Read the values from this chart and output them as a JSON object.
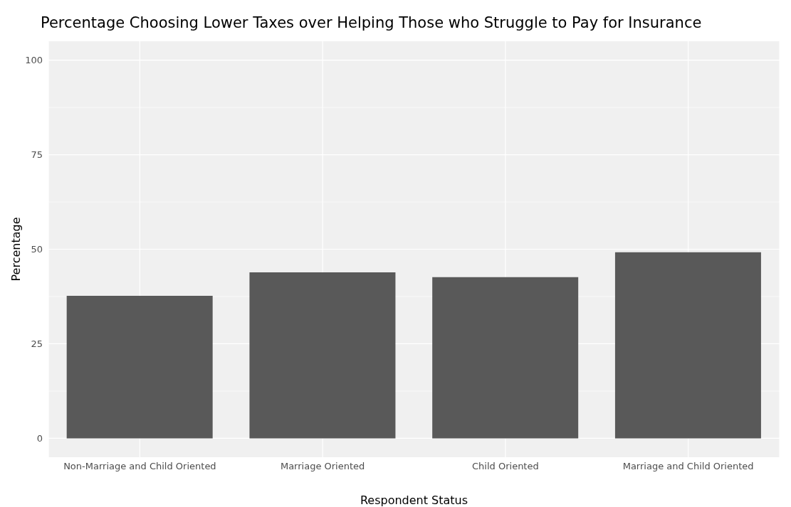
{
  "chart_data": {
    "type": "bar",
    "title": "Percentage Choosing Lower Taxes over Helping Those who Struggle to Pay for Insurance",
    "xlabel": "Respondent Status",
    "ylabel": "Percentage",
    "categories": [
      "Non-Marriage and Child Oriented",
      "Marriage Oriented",
      "Child Oriented",
      "Marriage and Child Oriented"
    ],
    "values": [
      37.7,
      43.9,
      42.6,
      49.2
    ],
    "color": "#595959",
    "ylim": [
      -5,
      105
    ],
    "yticks": [
      0,
      25,
      50,
      75,
      100
    ],
    "grid": true
  }
}
